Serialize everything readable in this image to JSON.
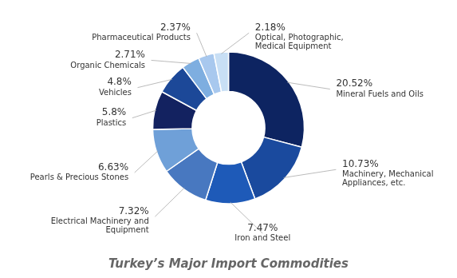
{
  "chart_data": {
    "type": "doughnut",
    "title": "Turkey’s Major Import Commodities",
    "categories": [
      "Mineral Fuels and Oils",
      "Machinery, Mechanical\nAppliances, etc.",
      "Iron and Steel",
      "Electrical Machinery and\nEquipment",
      "Pearls & Precious Stones",
      "Plastics",
      "Vehicles",
      "Organic Chemicals",
      "Pharmaceutical Products",
      "Optical, Photographic,\nMedical Equipment"
    ],
    "values": [
      20.52,
      10.73,
      7.47,
      7.32,
      6.63,
      5.8,
      4.8,
      2.71,
      2.37,
      2.18
    ],
    "value_labels": [
      "20.52%",
      "10.73%",
      "7.47%",
      "7.32%",
      "6.63%",
      "5.8%",
      "4.8%",
      "2.71%",
      "2.37%",
      "2.18%"
    ],
    "colors": [
      "#0d2461",
      "#1a4a9e",
      "#1e5ab8",
      "#4878c0",
      "#6fa0d8",
      "#132260",
      "#1c4898",
      "#7eaee0",
      "#a8c8ee",
      "#c8dff5"
    ],
    "data_labels": true
  }
}
